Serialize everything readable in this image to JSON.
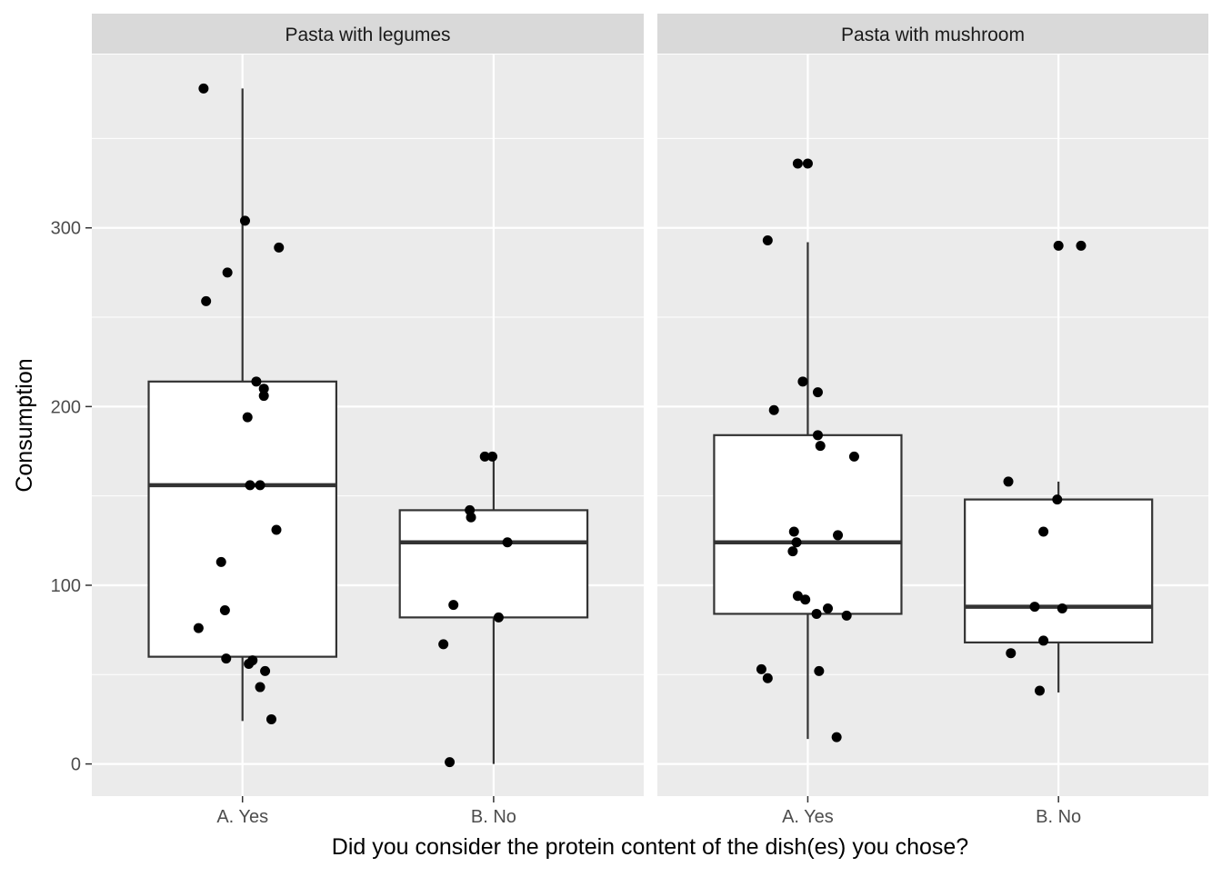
{
  "chart_data": {
    "type": "boxplot",
    "xlabel": "Did you consider the protein content of the dish(es) you chose?",
    "ylabel": "Consumption",
    "categories": [
      "A. Yes",
      "B. No"
    ],
    "y_ticks": [
      0,
      100,
      200,
      300
    ],
    "ylim": [
      -18,
      397
    ],
    "grid": true,
    "panels": [
      {
        "title": "Pasta with legumes",
        "boxes": [
          {
            "category": "A. Yes",
            "whisker_low": 24,
            "q1": 60,
            "median": 156,
            "q3": 214,
            "whisker_high": 378
          },
          {
            "category": "B. No",
            "whisker_low": 0,
            "q1": 82,
            "median": 124,
            "q3": 142,
            "whisker_high": 172
          }
        ],
        "points": [
          {
            "category": "A. Yes",
            "jitter": -0.31,
            "y": 378
          },
          {
            "category": "A. Yes",
            "jitter": 0.02,
            "y": 304
          },
          {
            "category": "A. Yes",
            "jitter": 0.29,
            "y": 289
          },
          {
            "category": "A. Yes",
            "jitter": -0.12,
            "y": 275
          },
          {
            "category": "A. Yes",
            "jitter": -0.29,
            "y": 259
          },
          {
            "category": "A. Yes",
            "jitter": 0.11,
            "y": 214
          },
          {
            "category": "A. Yes",
            "jitter": 0.17,
            "y": 210
          },
          {
            "category": "A. Yes",
            "jitter": 0.17,
            "y": 206
          },
          {
            "category": "A. Yes",
            "jitter": 0.04,
            "y": 194
          },
          {
            "category": "A. Yes",
            "jitter": 0.06,
            "y": 156
          },
          {
            "category": "A. Yes",
            "jitter": 0.14,
            "y": 156
          },
          {
            "category": "A. Yes",
            "jitter": 0.27,
            "y": 131
          },
          {
            "category": "A. Yes",
            "jitter": -0.17,
            "y": 113
          },
          {
            "category": "A. Yes",
            "jitter": -0.14,
            "y": 86
          },
          {
            "category": "A. Yes",
            "jitter": -0.35,
            "y": 76
          },
          {
            "category": "A. Yes",
            "jitter": -0.13,
            "y": 59
          },
          {
            "category": "A. Yes",
            "jitter": 0.08,
            "y": 58
          },
          {
            "category": "A. Yes",
            "jitter": 0.05,
            "y": 56
          },
          {
            "category": "A. Yes",
            "jitter": 0.18,
            "y": 52
          },
          {
            "category": "A. Yes",
            "jitter": 0.14,
            "y": 43
          },
          {
            "category": "A. Yes",
            "jitter": 0.23,
            "y": 25
          },
          {
            "category": "B. No",
            "jitter": -0.07,
            "y": 172
          },
          {
            "category": "B. No",
            "jitter": -0.01,
            "y": 172
          },
          {
            "category": "B. No",
            "jitter": -0.19,
            "y": 142
          },
          {
            "category": "B. No",
            "jitter": -0.18,
            "y": 138
          },
          {
            "category": "B. No",
            "jitter": 0.11,
            "y": 124
          },
          {
            "category": "B. No",
            "jitter": -0.32,
            "y": 89
          },
          {
            "category": "B. No",
            "jitter": 0.04,
            "y": 82
          },
          {
            "category": "B. No",
            "jitter": -0.4,
            "y": 67
          },
          {
            "category": "B. No",
            "jitter": -0.35,
            "y": 1
          }
        ]
      },
      {
        "title": "Pasta with mushroom",
        "boxes": [
          {
            "category": "A. Yes",
            "whisker_low": 14,
            "q1": 84,
            "median": 124,
            "q3": 184,
            "whisker_high": 292
          },
          {
            "category": "B. No",
            "whisker_low": 40,
            "q1": 68,
            "median": 88,
            "q3": 148,
            "whisker_high": 158
          }
        ],
        "points": [
          {
            "category": "A. Yes",
            "jitter": -0.08,
            "y": 336
          },
          {
            "category": "A. Yes",
            "jitter": 0.0,
            "y": 336
          },
          {
            "category": "A. Yes",
            "jitter": -0.32,
            "y": 293
          },
          {
            "category": "A. Yes",
            "jitter": -0.04,
            "y": 214
          },
          {
            "category": "A. Yes",
            "jitter": 0.08,
            "y": 208
          },
          {
            "category": "A. Yes",
            "jitter": -0.27,
            "y": 198
          },
          {
            "category": "A. Yes",
            "jitter": 0.08,
            "y": 184
          },
          {
            "category": "A. Yes",
            "jitter": 0.1,
            "y": 178
          },
          {
            "category": "A. Yes",
            "jitter": 0.37,
            "y": 172
          },
          {
            "category": "A. Yes",
            "jitter": -0.11,
            "y": 130
          },
          {
            "category": "A. Yes",
            "jitter": 0.24,
            "y": 128
          },
          {
            "category": "A. Yes",
            "jitter": -0.09,
            "y": 124
          },
          {
            "category": "A. Yes",
            "jitter": -0.12,
            "y": 119
          },
          {
            "category": "A. Yes",
            "jitter": -0.08,
            "y": 94
          },
          {
            "category": "A. Yes",
            "jitter": -0.02,
            "y": 92
          },
          {
            "category": "A. Yes",
            "jitter": 0.16,
            "y": 87
          },
          {
            "category": "A. Yes",
            "jitter": 0.07,
            "y": 84
          },
          {
            "category": "A. Yes",
            "jitter": 0.31,
            "y": 83
          },
          {
            "category": "A. Yes",
            "jitter": -0.37,
            "y": 53
          },
          {
            "category": "A. Yes",
            "jitter": 0.09,
            "y": 52
          },
          {
            "category": "A. Yes",
            "jitter": -0.32,
            "y": 48
          },
          {
            "category": "A. Yes",
            "jitter": 0.23,
            "y": 15
          },
          {
            "category": "B. No",
            "jitter": 0.0,
            "y": 290
          },
          {
            "category": "B. No",
            "jitter": 0.18,
            "y": 290
          },
          {
            "category": "B. No",
            "jitter": -0.4,
            "y": 158
          },
          {
            "category": "B. No",
            "jitter": -0.01,
            "y": 148
          },
          {
            "category": "B. No",
            "jitter": -0.12,
            "y": 130
          },
          {
            "category": "B. No",
            "jitter": -0.19,
            "y": 88
          },
          {
            "category": "B. No",
            "jitter": 0.03,
            "y": 87
          },
          {
            "category": "B. No",
            "jitter": -0.12,
            "y": 69
          },
          {
            "category": "B. No",
            "jitter": -0.38,
            "y": 62
          },
          {
            "category": "B. No",
            "jitter": -0.15,
            "y": 41
          }
        ]
      }
    ]
  }
}
